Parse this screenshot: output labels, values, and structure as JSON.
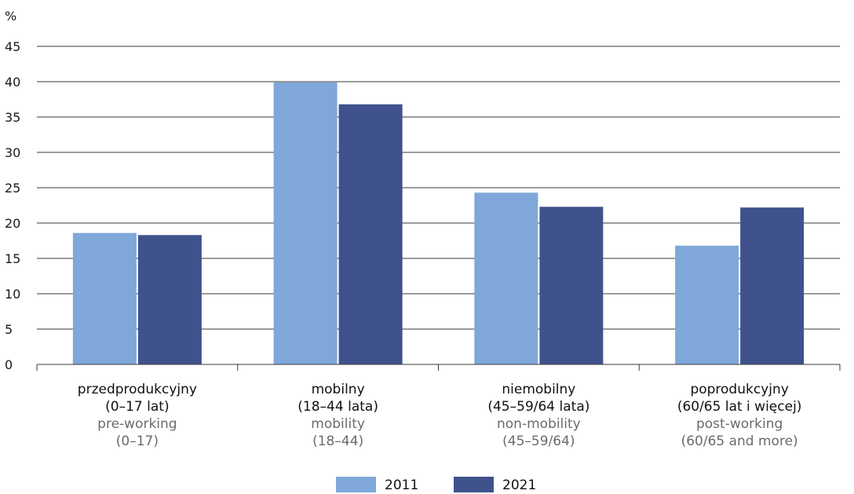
{
  "chart_data": {
    "type": "bar",
    "ylabel": "%",
    "ylim": [
      0,
      45
    ],
    "yticks": [
      0,
      5,
      10,
      15,
      20,
      25,
      30,
      35,
      40,
      45
    ],
    "grid": true,
    "legend_position": "bottom",
    "categories": [
      {
        "pl": [
          "przedprodukcyjny",
          "(0–17 lat)"
        ],
        "en": [
          "pre-working",
          "(0–17)"
        ]
      },
      {
        "pl": [
          "mobilny",
          "(18–44 lata)"
        ],
        "en": [
          "mobility",
          "(18–44)"
        ]
      },
      {
        "pl": [
          "niemobilny",
          "(45–59/64 lata)"
        ],
        "en": [
          "non-mobility",
          "(45–59/64)"
        ]
      },
      {
        "pl": [
          "poprodukcyjny",
          "(60/65 lat i więcej)"
        ],
        "en": [
          "post-working",
          "(60/65 and more)"
        ]
      }
    ],
    "series": [
      {
        "name": "2011",
        "color": "#7fa7da",
        "values": [
          18.6,
          39.9,
          24.3,
          16.8
        ]
      },
      {
        "name": "2021",
        "color": "#40528c",
        "values": [
          18.3,
          36.8,
          22.3,
          22.2
        ]
      }
    ]
  }
}
